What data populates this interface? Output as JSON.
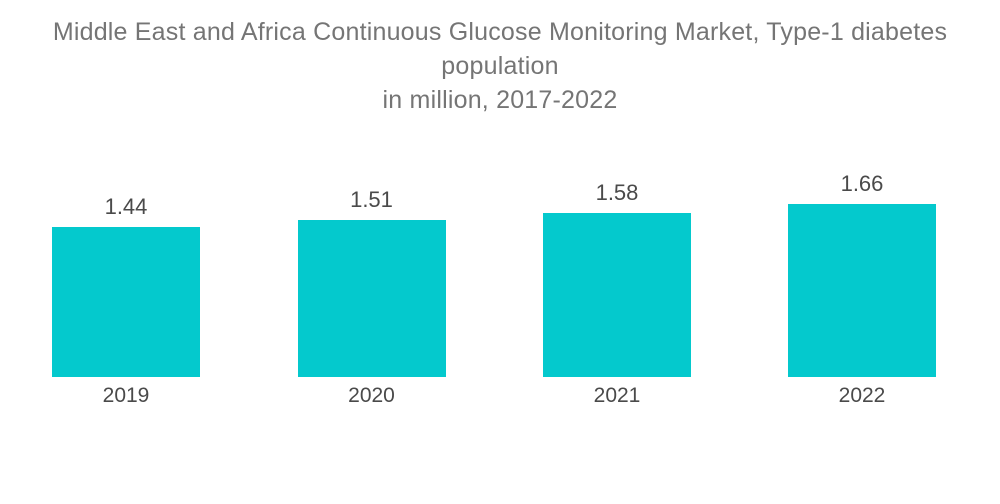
{
  "title": {
    "line1": "Middle East and Africa Continuous Glucose Monitoring Market, Type-1 diabetes population",
    "line2": "in million, 2017-2022"
  },
  "colors": {
    "bar": "#04C9CD",
    "title_text": "#757575",
    "label_text": "#4A4A4A"
  },
  "chart_data": {
    "type": "bar",
    "title": "Middle East and Africa Continuous Glucose Monitoring Market, Type-1 diabetes population in million, 2017-2022",
    "categories": [
      "2019",
      "2020",
      "2021",
      "2022"
    ],
    "values": [
      1.44,
      1.51,
      1.58,
      1.66
    ],
    "value_labels": [
      "1.44",
      "1.51",
      "1.58",
      "1.66"
    ],
    "xlabel": "",
    "ylabel": "",
    "ylim": [
      0,
      2
    ],
    "grid": false,
    "legend": false,
    "axes_visible": false
  }
}
